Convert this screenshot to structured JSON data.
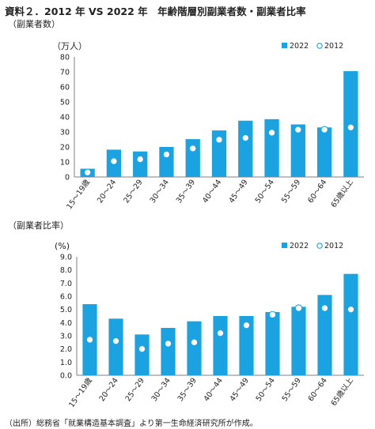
{
  "title": "資料２．2012 年 VS 2022 年　年齢階層別副業者数・副業者比率",
  "source": "（出所）総務省「就業構造基本調査」より第一生命経済研究所が作成。",
  "colors": {
    "bar_2022": "#1aa3e0",
    "marker_2012": "#1aa3e0",
    "axis": "#7f7f7f"
  },
  "chart_data": [
    {
      "type": "bar",
      "section_label": "（副業者数）",
      "ylabel": "（万人）",
      "ylim": [
        0,
        80
      ],
      "yticks": [
        "0",
        "10",
        "20",
        "30",
        "40",
        "50",
        "60",
        "70",
        "80"
      ],
      "legend_position": "top-right",
      "categories": [
        "15〜19歳",
        "20〜24",
        "25〜29",
        "30〜34",
        "35〜39",
        "40〜44",
        "45〜49",
        "50〜54",
        "55〜59",
        "60〜64",
        "65歳以上"
      ],
      "series": [
        {
          "name": "2022",
          "kind": "bar",
          "values": [
            5.5,
            18.2,
            17.0,
            20.0,
            25.2,
            31.0,
            37.5,
            38.5,
            35.0,
            33.0,
            70.5
          ]
        },
        {
          "name": "2012",
          "kind": "marker",
          "values": [
            3.0,
            10.5,
            11.8,
            15.0,
            19.0,
            24.8,
            26.0,
            29.5,
            31.5,
            31.5,
            33.0
          ]
        }
      ]
    },
    {
      "type": "bar",
      "section_label": "（副業者比率）",
      "ylabel": "(%)",
      "ylim": [
        0,
        9
      ],
      "yticks": [
        "0.0",
        "1.0",
        "2.0",
        "3.0",
        "4.0",
        "5.0",
        "6.0",
        "7.0",
        "8.0",
        "9.0"
      ],
      "legend_position": "top-right",
      "categories": [
        "15〜19歳",
        "20〜24",
        "25〜29",
        "30〜34",
        "35〜39",
        "40〜44",
        "45〜49",
        "50〜54",
        "55〜59",
        "60〜64",
        "65歳以上"
      ],
      "series": [
        {
          "name": "2022",
          "kind": "bar",
          "values": [
            5.4,
            4.3,
            3.1,
            3.6,
            4.1,
            4.5,
            4.5,
            4.8,
            5.2,
            6.1,
            7.7
          ]
        },
        {
          "name": "2012",
          "kind": "marker",
          "values": [
            2.7,
            2.6,
            2.0,
            2.4,
            2.5,
            3.2,
            3.8,
            4.6,
            5.1,
            5.1,
            5.0
          ]
        }
      ]
    }
  ]
}
